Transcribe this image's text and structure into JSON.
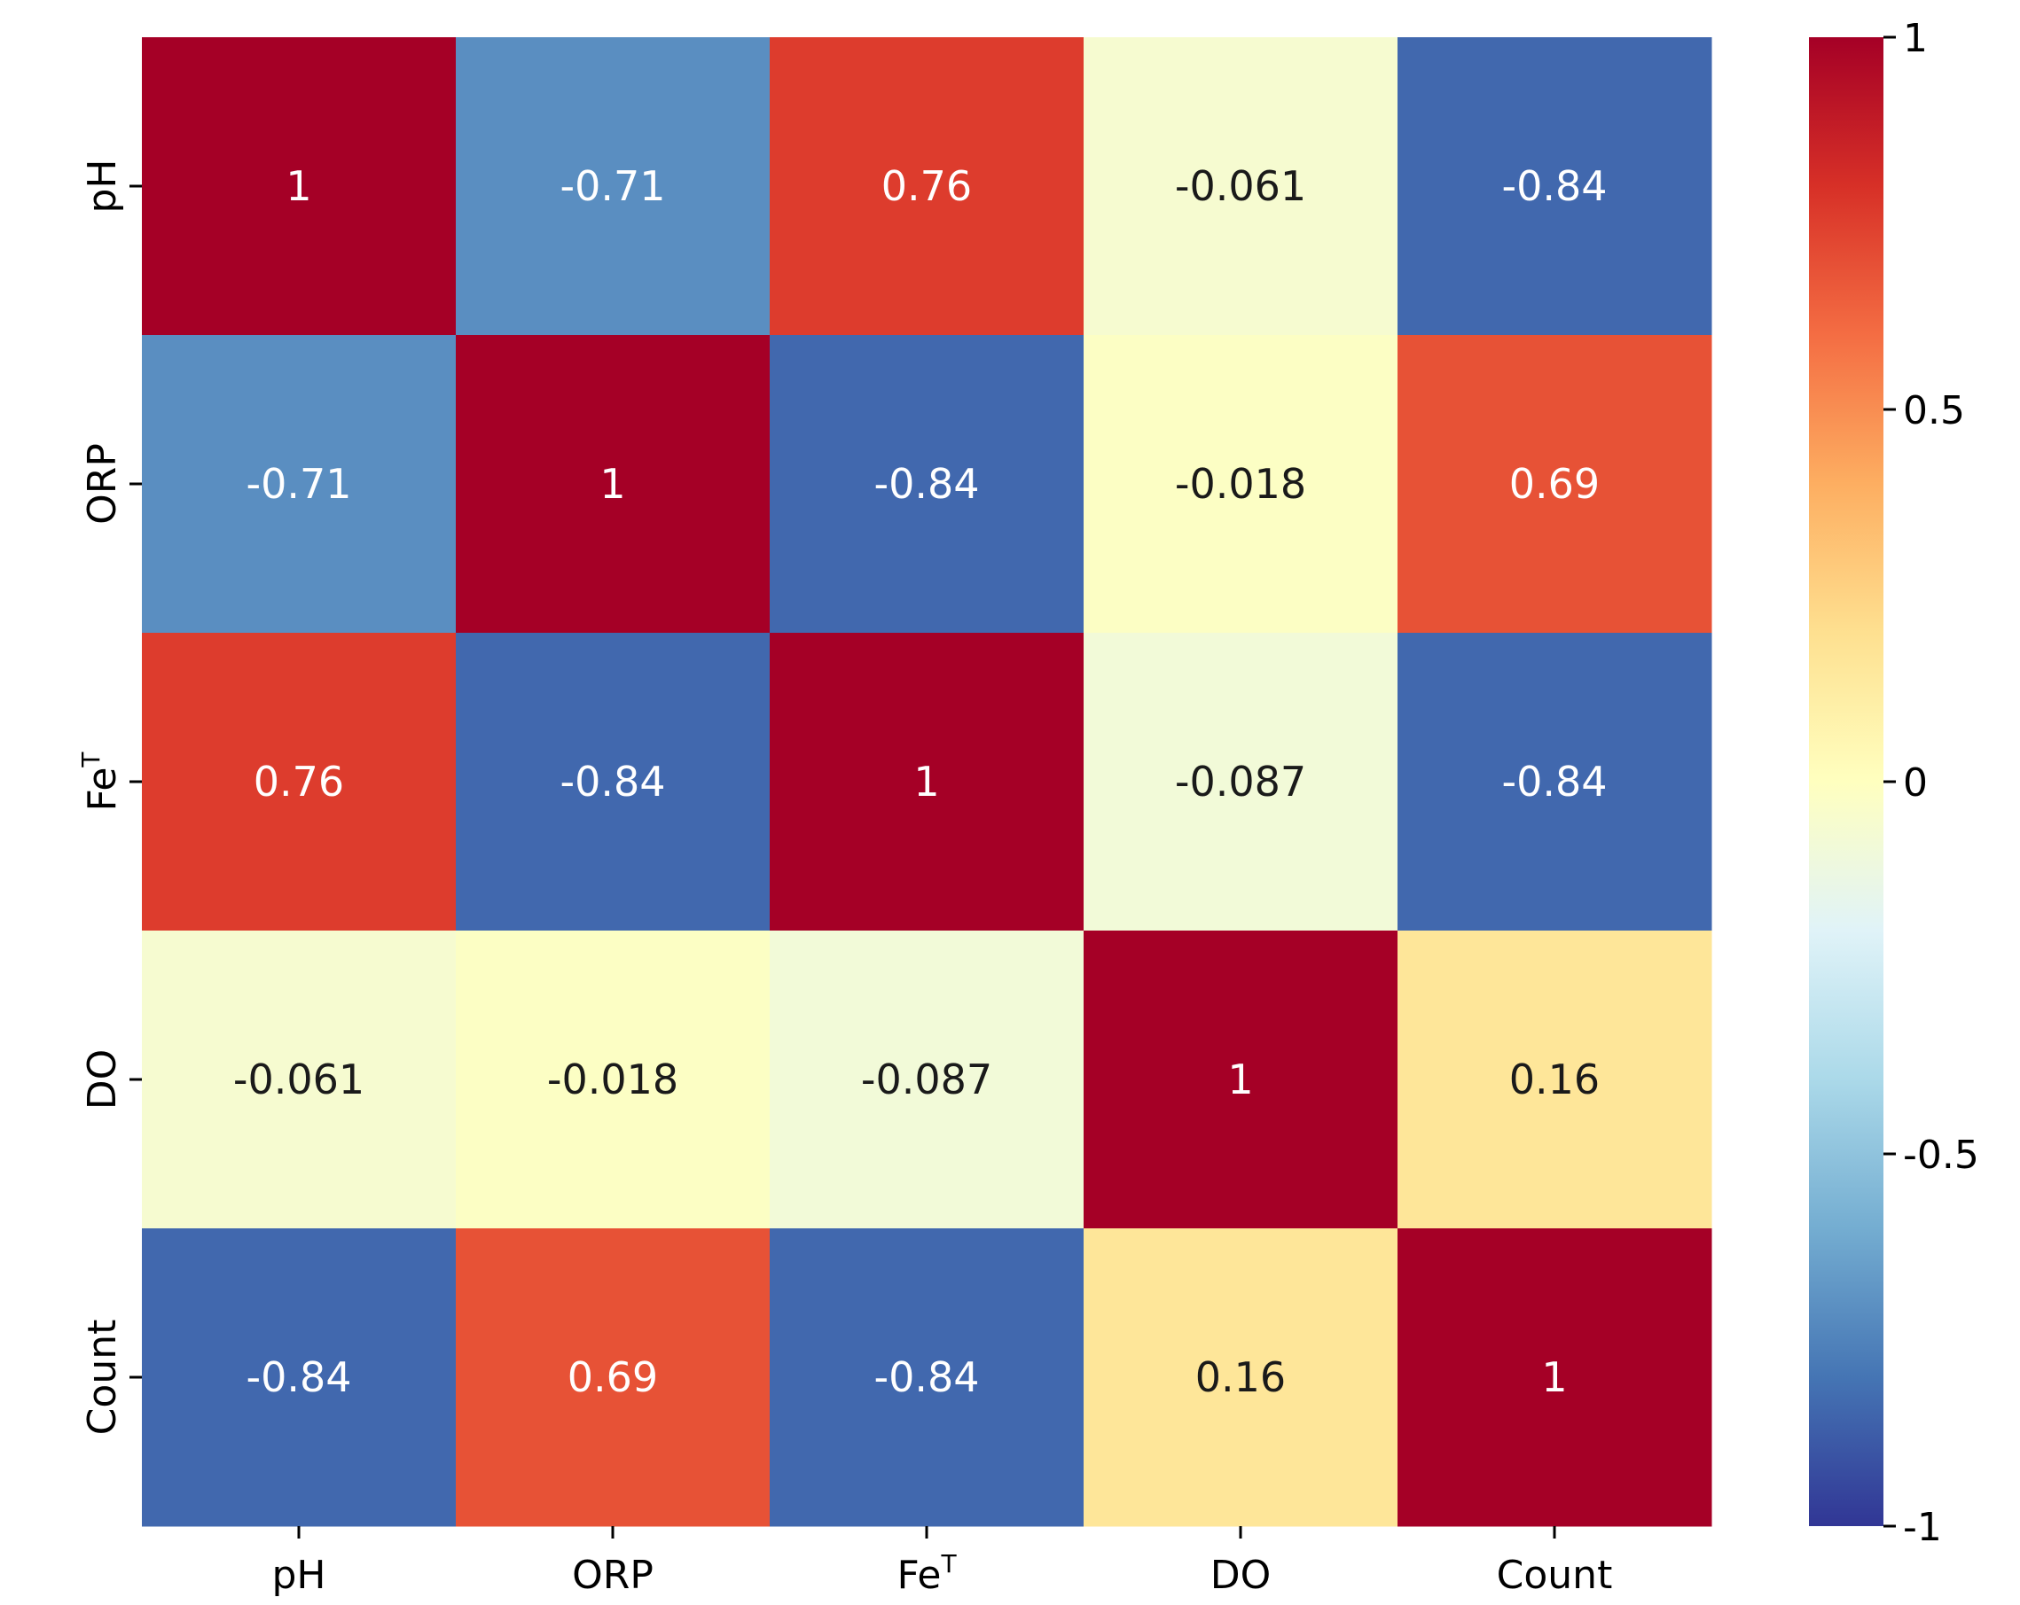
{
  "chart_data": {
    "type": "heatmap",
    "title": "",
    "rows": [
      "pH",
      "ORP",
      "FeT",
      "DO",
      "Count"
    ],
    "columns": [
      "pH",
      "ORP",
      "FeT",
      "DO",
      "Count"
    ],
    "values": [
      [
        1,
        -0.71,
        0.76,
        -0.061,
        -0.84
      ],
      [
        -0.71,
        1,
        -0.84,
        -0.018,
        0.69
      ],
      [
        0.76,
        -0.84,
        1,
        -0.087,
        -0.84
      ],
      [
        -0.061,
        -0.018,
        -0.087,
        1,
        0.16
      ],
      [
        -0.84,
        0.69,
        -0.84,
        0.16,
        1
      ]
    ],
    "labels": [
      [
        "1",
        "-0.71",
        "0.76",
        "-0.061",
        "-0.84"
      ],
      [
        "-0.71",
        "1",
        "-0.84",
        "-0.018",
        "0.69"
      ],
      [
        "0.76",
        "-0.84",
        "1",
        "-0.087",
        "-0.84"
      ],
      [
        "-0.061",
        "-0.018",
        "-0.087",
        "1",
        "0.16"
      ],
      [
        "-0.84",
        "0.69",
        "-0.84",
        "0.16",
        "1"
      ]
    ],
    "colormap": "RdYlBu_r",
    "vmin": -1,
    "vmax": 1,
    "colorbar": {
      "ticks": [
        1,
        0.5,
        0,
        -0.5,
        -1
      ],
      "tick_labels": [
        "1",
        "0.5",
        "0",
        "-0.5",
        "-1"
      ]
    },
    "xlabel": "",
    "ylabel": ""
  },
  "colors": {
    "stops": [
      "#313695",
      "#4575b4",
      "#74add1",
      "#abd9e9",
      "#e0f3f8",
      "#ffffbf",
      "#fee090",
      "#fdae61",
      "#f46d43",
      "#d73027",
      "#a50026"
    ]
  }
}
